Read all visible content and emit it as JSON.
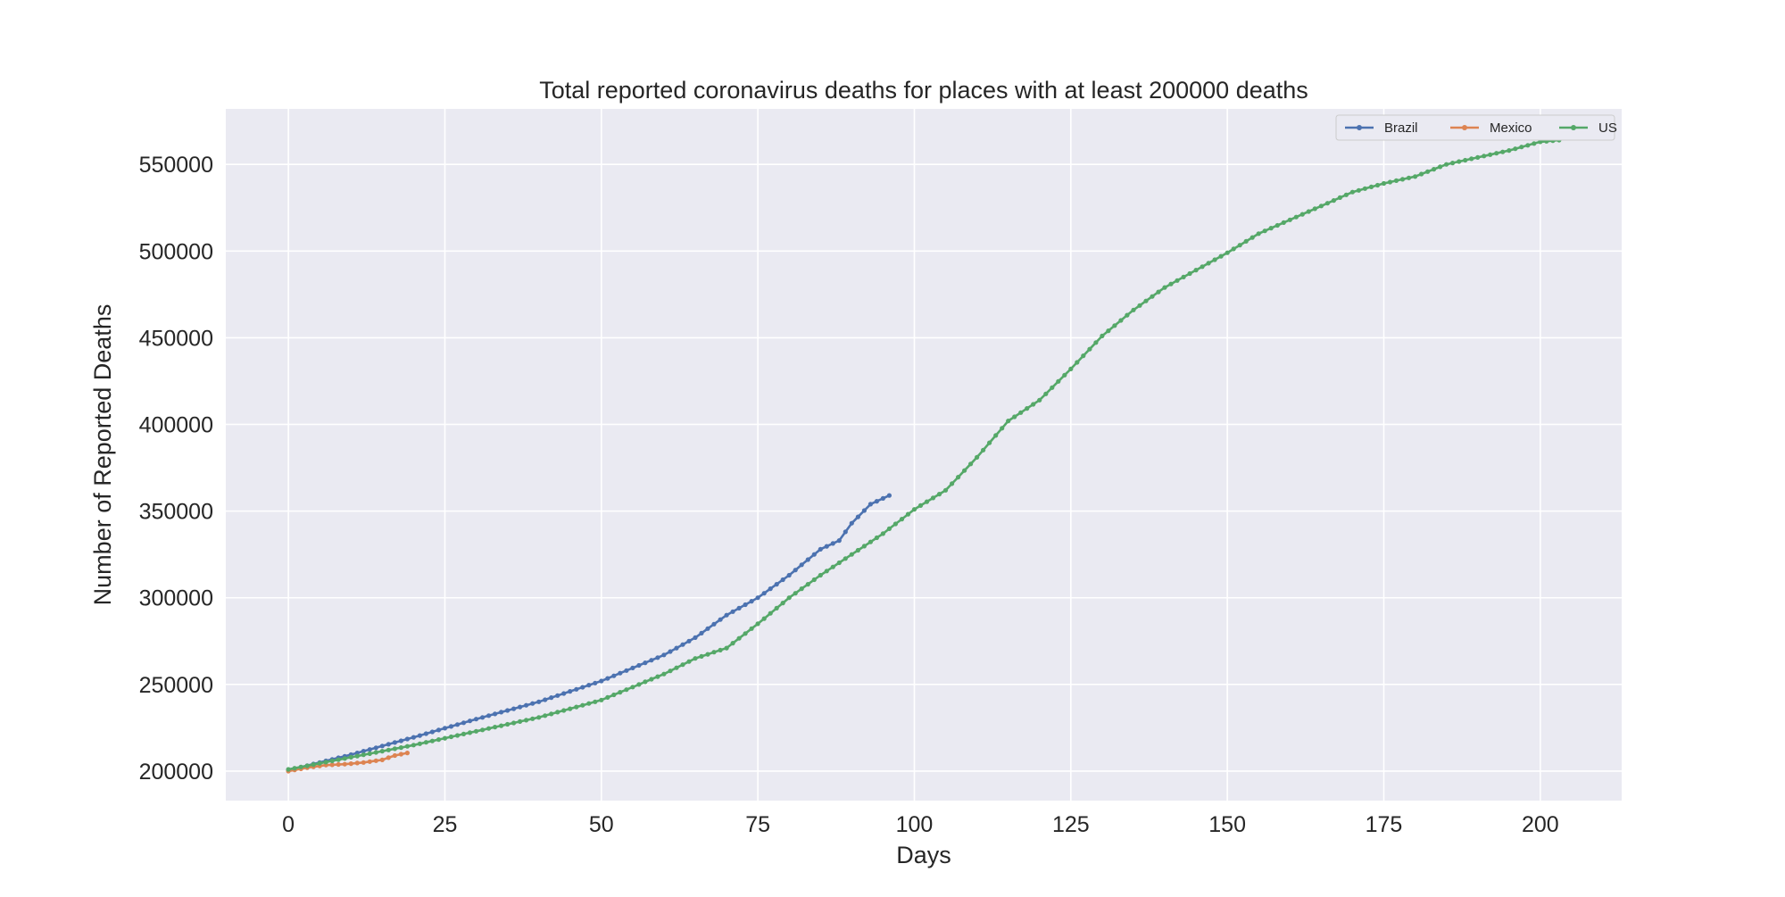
{
  "chart_data": {
    "type": "line",
    "title": "Total reported coronavirus deaths for places with at least 200000 deaths",
    "xlabel": "Days",
    "ylabel": "Number of Reported Deaths",
    "xlim": [
      -10,
      213
    ],
    "ylim": [
      183000,
      582000
    ],
    "xticks": [
      0,
      25,
      50,
      75,
      100,
      125,
      150,
      175,
      200
    ],
    "yticks": [
      200000,
      250000,
      300000,
      350000,
      400000,
      450000,
      500000,
      550000
    ],
    "grid": true,
    "legend_position": "top-right",
    "marker": "circle",
    "series": [
      {
        "name": "Brazil",
        "color": "#4c72b0",
        "x": [
          0,
          10,
          20,
          30,
          40,
          50,
          60,
          65,
          70,
          75,
          80,
          85,
          88,
          90,
          93,
          96
        ],
        "y": [
          200500,
          209500,
          219500,
          230000,
          240000,
          252000,
          267000,
          277000,
          290000,
          300000,
          313000,
          328000,
          333000,
          343000,
          354000,
          359000
        ]
      },
      {
        "name": "Mexico",
        "color": "#dd8452",
        "x": [
          0,
          3,
          6,
          9,
          12,
          15,
          17,
          19
        ],
        "y": [
          200000,
          202000,
          203500,
          204000,
          205000,
          206500,
          209000,
          210500
        ]
      },
      {
        "name": "US",
        "color": "#55a868",
        "x": [
          0,
          10,
          20,
          30,
          40,
          50,
          60,
          65,
          70,
          75,
          80,
          85,
          90,
          95,
          100,
          105,
          110,
          115,
          120,
          125,
          130,
          135,
          140,
          145,
          150,
          155,
          160,
          165,
          170,
          175,
          180,
          185,
          190,
          195,
          200,
          203
        ],
        "y": [
          201000,
          208000,
          215000,
          223000,
          231000,
          241000,
          256000,
          265000,
          271000,
          285000,
          300000,
          313000,
          325000,
          337000,
          351000,
          362000,
          381000,
          402000,
          414000,
          432000,
          451000,
          466000,
          479000,
          489000,
          499000,
          510000,
          518000,
          526000,
          534000,
          539000,
          543000,
          550000,
          554000,
          558000,
          563000,
          564000
        ]
      }
    ]
  }
}
